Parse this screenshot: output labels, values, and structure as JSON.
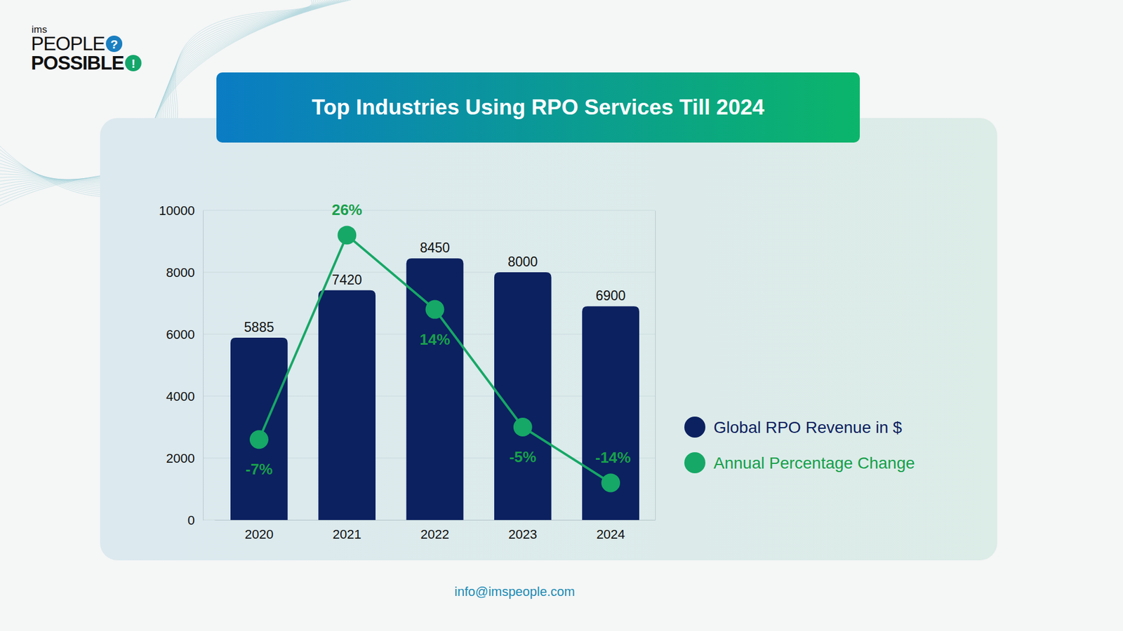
{
  "logo": {
    "small": "ims",
    "line1": "PEOPLE",
    "mark1": "?",
    "line2": "POSSIBLE",
    "mark2": "!"
  },
  "footer": "info@imspeople.com",
  "chart_data": {
    "type": "bar",
    "title": "Top Industries Using RPO Services Till 2024",
    "categories": [
      "2020",
      "2021",
      "2022",
      "2023",
      "2024"
    ],
    "ylim": [
      0,
      10000
    ],
    "yticks": [
      0,
      2000,
      4000,
      6000,
      8000,
      10000
    ],
    "y2lim": [
      -20,
      30
    ],
    "grid": true,
    "data_labels": true,
    "legend": "right",
    "series": [
      {
        "name": "Global RPO Revenue in $",
        "type": "bar",
        "color": "#0c2160",
        "values": [
          5885,
          7420,
          8450,
          8000,
          6900
        ]
      },
      {
        "name": "Annual Percentage Change",
        "type": "line",
        "axis": "y2",
        "color": "#16a866",
        "marker": "circle",
        "values": [
          -7,
          26,
          14,
          -5,
          -14
        ],
        "value_labels": [
          "-7%",
          "26%",
          "14%",
          "-5%",
          "-14%"
        ]
      }
    ]
  }
}
